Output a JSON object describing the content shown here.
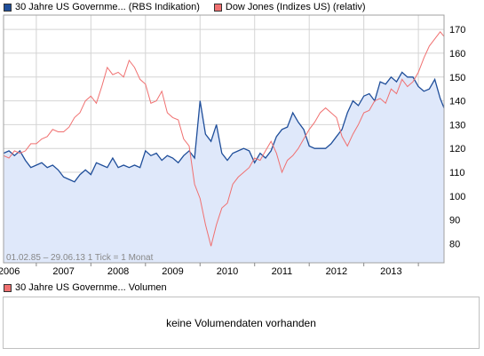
{
  "legend": {
    "series1": "30 Jahre US Governme... (RBS Indikation)",
    "series2": "Dow Jones (Indizes US) (relativ)"
  },
  "info_text": "01.02.85 – 29.06.13   1 Tick = 1 Monat",
  "volume": {
    "legend_label": "30 Jahre US Governme... Volumen",
    "empty_message": "keine Volumendaten vorhanden"
  },
  "colors": {
    "series1_line": "#1f4e9a",
    "series1_fill": "#dfe8fa",
    "series2_line": "#f07070",
    "grid": "#d4d4d4"
  },
  "chart_data": {
    "type": "line",
    "x_unit": "year",
    "x_tick_labels": [
      "2006",
      "2007",
      "2008",
      "2009",
      "2010",
      "2011",
      "2012",
      "2013"
    ],
    "x_ticks": [
      2006,
      2007,
      2008,
      2009,
      2010,
      2011,
      2012,
      2013
    ],
    "xlim": [
      2005.4,
      2013.47
    ],
    "y_ticks": [
      80,
      90,
      100,
      110,
      120,
      130,
      140,
      150,
      160,
      170
    ],
    "ylim": [
      72,
      176
    ],
    "grid": true,
    "series": [
      {
        "name": "30 Jahre US Governme... (RBS Indikation)",
        "area": true,
        "points": [
          [
            2005.4,
            118
          ],
          [
            2005.5,
            119
          ],
          [
            2005.6,
            117
          ],
          [
            2005.7,
            119
          ],
          [
            2005.8,
            115
          ],
          [
            2005.9,
            112
          ],
          [
            2006.0,
            113
          ],
          [
            2006.1,
            114
          ],
          [
            2006.2,
            112
          ],
          [
            2006.3,
            113
          ],
          [
            2006.4,
            111
          ],
          [
            2006.5,
            108
          ],
          [
            2006.6,
            107
          ],
          [
            2006.7,
            106
          ],
          [
            2006.8,
            109
          ],
          [
            2006.9,
            111
          ],
          [
            2007.0,
            109
          ],
          [
            2007.1,
            114
          ],
          [
            2007.2,
            113
          ],
          [
            2007.3,
            112
          ],
          [
            2007.4,
            116
          ],
          [
            2007.5,
            112
          ],
          [
            2007.6,
            113
          ],
          [
            2007.7,
            112
          ],
          [
            2007.8,
            113
          ],
          [
            2007.9,
            112
          ],
          [
            2008.0,
            119
          ],
          [
            2008.1,
            117
          ],
          [
            2008.2,
            118
          ],
          [
            2008.3,
            115
          ],
          [
            2008.4,
            117
          ],
          [
            2008.5,
            116
          ],
          [
            2008.6,
            114
          ],
          [
            2008.7,
            117
          ],
          [
            2008.8,
            119
          ],
          [
            2008.9,
            116
          ],
          [
            2009.0,
            140
          ],
          [
            2009.1,
            126
          ],
          [
            2009.2,
            123
          ],
          [
            2009.3,
            130
          ],
          [
            2009.4,
            118
          ],
          [
            2009.5,
            115
          ],
          [
            2009.6,
            118
          ],
          [
            2009.7,
            119
          ],
          [
            2009.8,
            120
          ],
          [
            2009.9,
            119
          ],
          [
            2010.0,
            114
          ],
          [
            2010.1,
            118
          ],
          [
            2010.2,
            116
          ],
          [
            2010.3,
            119
          ],
          [
            2010.4,
            125
          ],
          [
            2010.5,
            128
          ],
          [
            2010.6,
            129
          ],
          [
            2010.7,
            135
          ],
          [
            2010.8,
            131
          ],
          [
            2010.9,
            128
          ],
          [
            2011.0,
            121
          ],
          [
            2011.1,
            120
          ],
          [
            2011.2,
            120
          ],
          [
            2011.3,
            120
          ],
          [
            2011.4,
            122
          ],
          [
            2011.5,
            125
          ],
          [
            2011.6,
            128
          ],
          [
            2011.7,
            135
          ],
          [
            2011.8,
            140
          ],
          [
            2011.9,
            138
          ],
          [
            2012.0,
            142
          ],
          [
            2012.1,
            143
          ],
          [
            2012.2,
            140
          ],
          [
            2012.3,
            148
          ],
          [
            2012.4,
            147
          ],
          [
            2012.5,
            150
          ],
          [
            2012.6,
            148
          ],
          [
            2012.7,
            152
          ],
          [
            2012.8,
            150
          ],
          [
            2012.9,
            150
          ],
          [
            2013.0,
            146
          ],
          [
            2013.1,
            144
          ],
          [
            2013.2,
            145
          ],
          [
            2013.3,
            149
          ],
          [
            2013.4,
            141
          ],
          [
            2013.47,
            137
          ]
        ]
      },
      {
        "name": "Dow Jones (Indizes US) (relativ)",
        "area": false,
        "points": [
          [
            2005.4,
            117
          ],
          [
            2005.5,
            116
          ],
          [
            2005.6,
            119
          ],
          [
            2005.7,
            118
          ],
          [
            2005.8,
            119
          ],
          [
            2005.9,
            122
          ],
          [
            2006.0,
            122
          ],
          [
            2006.1,
            124
          ],
          [
            2006.2,
            125
          ],
          [
            2006.3,
            128
          ],
          [
            2006.4,
            127
          ],
          [
            2006.5,
            127
          ],
          [
            2006.6,
            129
          ],
          [
            2006.7,
            133
          ],
          [
            2006.8,
            135
          ],
          [
            2006.9,
            140
          ],
          [
            2007.0,
            142
          ],
          [
            2007.1,
            139
          ],
          [
            2007.2,
            146
          ],
          [
            2007.3,
            154
          ],
          [
            2007.4,
            151
          ],
          [
            2007.5,
            152
          ],
          [
            2007.6,
            150
          ],
          [
            2007.7,
            157
          ],
          [
            2007.8,
            154
          ],
          [
            2007.9,
            149
          ],
          [
            2008.0,
            147
          ],
          [
            2008.1,
            139
          ],
          [
            2008.2,
            140
          ],
          [
            2008.3,
            144
          ],
          [
            2008.4,
            135
          ],
          [
            2008.5,
            133
          ],
          [
            2008.6,
            132
          ],
          [
            2008.7,
            124
          ],
          [
            2008.8,
            121
          ],
          [
            2008.9,
            105
          ],
          [
            2009.0,
            99
          ],
          [
            2009.1,
            88
          ],
          [
            2009.2,
            79
          ],
          [
            2009.3,
            88
          ],
          [
            2009.4,
            95
          ],
          [
            2009.5,
            97
          ],
          [
            2009.6,
            105
          ],
          [
            2009.7,
            108
          ],
          [
            2009.8,
            110
          ],
          [
            2009.9,
            112
          ],
          [
            2010.0,
            116
          ],
          [
            2010.1,
            115
          ],
          [
            2010.2,
            119
          ],
          [
            2010.3,
            123
          ],
          [
            2010.4,
            118
          ],
          [
            2010.5,
            110
          ],
          [
            2010.6,
            115
          ],
          [
            2010.7,
            117
          ],
          [
            2010.8,
            120
          ],
          [
            2010.9,
            124
          ],
          [
            2011.0,
            128
          ],
          [
            2011.1,
            131
          ],
          [
            2011.2,
            135
          ],
          [
            2011.3,
            137
          ],
          [
            2011.4,
            135
          ],
          [
            2011.5,
            133
          ],
          [
            2011.6,
            125
          ],
          [
            2011.7,
            121
          ],
          [
            2011.8,
            126
          ],
          [
            2011.9,
            130
          ],
          [
            2012.0,
            135
          ],
          [
            2012.1,
            136
          ],
          [
            2012.2,
            140
          ],
          [
            2012.3,
            141
          ],
          [
            2012.4,
            139
          ],
          [
            2012.5,
            145
          ],
          [
            2012.6,
            143
          ],
          [
            2012.7,
            149
          ],
          [
            2012.8,
            146
          ],
          [
            2012.9,
            148
          ],
          [
            2013.0,
            152
          ],
          [
            2013.1,
            158
          ],
          [
            2013.2,
            163
          ],
          [
            2013.3,
            166
          ],
          [
            2013.4,
            169
          ],
          [
            2013.47,
            167
          ]
        ]
      }
    ]
  }
}
